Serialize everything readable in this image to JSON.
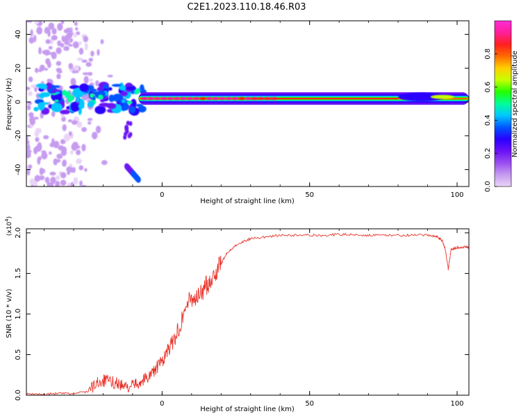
{
  "chart_data": [
    {
      "type": "heatmap",
      "title": "C2E1.2023.110.18.46.R03",
      "xlabel": "Height of straight line (km)",
      "ylabel": "Frequency (Hz)",
      "xlim": [
        -46,
        104
      ],
      "ylim": [
        -50,
        48
      ],
      "xticks": [
        0,
        50,
        100
      ],
      "yticks": [
        -40,
        -20,
        0,
        20,
        40
      ],
      "colorbar": {
        "label": "Normalized spectral amplitude",
        "range": [
          0,
          1
        ],
        "ticks": [
          "0.0",
          "0.2",
          "0.4",
          "0.6",
          "0.8"
        ],
        "colors": [
          "#e9d6f7",
          "#c69bf0",
          "#9a4df0",
          "#6a12f5",
          "#2a00ff",
          "#0055ff",
          "#00c8ff",
          "#00ff99",
          "#22ff00",
          "#c8ff00",
          "#ffd000",
          "#ff6a00",
          "#ff1f1f",
          "#ff1f9a",
          "#ff2bd6"
        ]
      },
      "main_band": {
        "frequency_hz": 2,
        "x_start": -8,
        "x_end": 104
      }
    },
    {
      "type": "line",
      "xlabel": "Height of straight line (km)",
      "ylabel": "SNR (10 * v/v)",
      "y_multiplier": "(x10^4)",
      "xlim": [
        -46,
        104
      ],
      "ylim": [
        0,
        2.05
      ],
      "xticks": [
        0,
        50,
        100
      ],
      "yticks": [
        "0.0",
        "0.5",
        "1.0",
        "1.5",
        "2.0"
      ],
      "color": "#e8332a",
      "x": [
        -46,
        -40,
        -35,
        -30,
        -25,
        -22,
        -20,
        -18,
        -15,
        -13,
        -10,
        -8,
        -6,
        -4,
        -2,
        0,
        2,
        4,
        6,
        8,
        10,
        12,
        14,
        16,
        18,
        20,
        22,
        25,
        28,
        30,
        35,
        40,
        45,
        50,
        55,
        60,
        65,
        70,
        75,
        80,
        85,
        90,
        93,
        95,
        96,
        97,
        98,
        100,
        103,
        104
      ],
      "values": [
        0.01,
        0.01,
        0.02,
        0.02,
        0.05,
        0.15,
        0.18,
        0.17,
        0.15,
        0.1,
        0.12,
        0.15,
        0.2,
        0.25,
        0.33,
        0.42,
        0.55,
        0.68,
        0.85,
        1.1,
        1.2,
        1.2,
        1.3,
        1.4,
        1.5,
        1.62,
        1.75,
        1.85,
        1.9,
        1.93,
        1.95,
        1.97,
        1.97,
        1.97,
        1.97,
        1.98,
        1.98,
        1.97,
        1.97,
        1.97,
        1.97,
        1.97,
        1.96,
        1.9,
        1.8,
        1.55,
        1.8,
        1.82,
        1.83,
        1.82
      ]
    }
  ],
  "icons": {
    "colorbar_strip": "spectrum-colorbar"
  }
}
